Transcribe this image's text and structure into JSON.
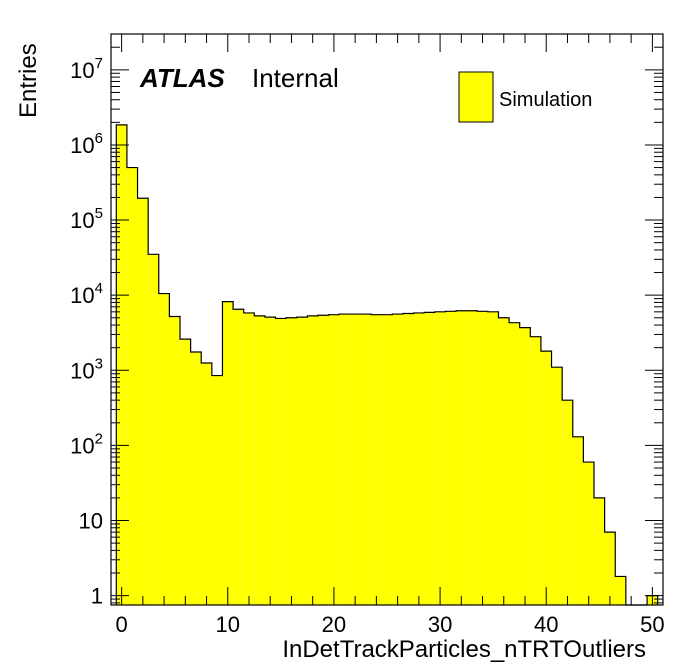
{
  "chart_data": {
    "type": "bar",
    "title": "",
    "xlabel": "InDetTrackParticles_nTRTOutliers",
    "ylabel": "Entries",
    "xlim": [
      -1,
      51
    ],
    "ylim": [
      0.75,
      30000000
    ],
    "yscale": "log",
    "grid": false,
    "legend_position": "top-right",
    "fill_color": "#ffff00",
    "line_color": "#000000",
    "labels": {
      "experiment": "ATLAS",
      "status": "Internal"
    },
    "x_ticks": [
      "0",
      "10",
      "20",
      "30",
      "40",
      "50"
    ],
    "y_ticks": [
      {
        "value": 1,
        "base": "1",
        "exp": ""
      },
      {
        "value": 10,
        "base": "10",
        "exp": ""
      },
      {
        "value": 100,
        "base": "10",
        "exp": "2"
      },
      {
        "value": 1000,
        "base": "10",
        "exp": "3"
      },
      {
        "value": 10000,
        "base": "10",
        "exp": "4"
      },
      {
        "value": 100000,
        "base": "10",
        "exp": "5"
      },
      {
        "value": 1000000,
        "base": "10",
        "exp": "6"
      },
      {
        "value": 10000000,
        "base": "10",
        "exp": "7"
      }
    ],
    "series": [
      {
        "name": "Simulation",
        "bin_edges": [
          -0.5,
          0.5,
          1.5,
          2.5,
          3.5,
          4.5,
          5.5,
          6.5,
          7.5,
          8.5,
          9.5,
          10.5,
          11.5,
          12.5,
          13.5,
          14.5,
          15.5,
          16.5,
          17.5,
          18.5,
          19.5,
          20.5,
          21.5,
          22.5,
          23.5,
          24.5,
          25.5,
          26.5,
          27.5,
          28.5,
          29.5,
          30.5,
          31.5,
          32.5,
          33.5,
          34.5,
          35.5,
          36.5,
          37.5,
          38.5,
          39.5,
          40.5,
          41.5,
          42.5,
          43.5,
          44.5,
          45.5,
          46.5,
          47.5,
          48.5,
          49.5,
          50.5
        ],
        "values": [
          1850000,
          500000,
          195000,
          35000,
          10500,
          5200,
          2600,
          1750,
          1250,
          850,
          8200,
          6500,
          5800,
          5300,
          5100,
          4900,
          5000,
          5100,
          5300,
          5400,
          5500,
          5600,
          5600,
          5600,
          5500,
          5500,
          5600,
          5700,
          5800,
          5900,
          6000,
          6100,
          6200,
          6200,
          6100,
          6000,
          5000,
          4300,
          3700,
          2800,
          1800,
          1100,
          400,
          130,
          60,
          20,
          7,
          1.8,
          0,
          0,
          1
        ]
      }
    ]
  }
}
